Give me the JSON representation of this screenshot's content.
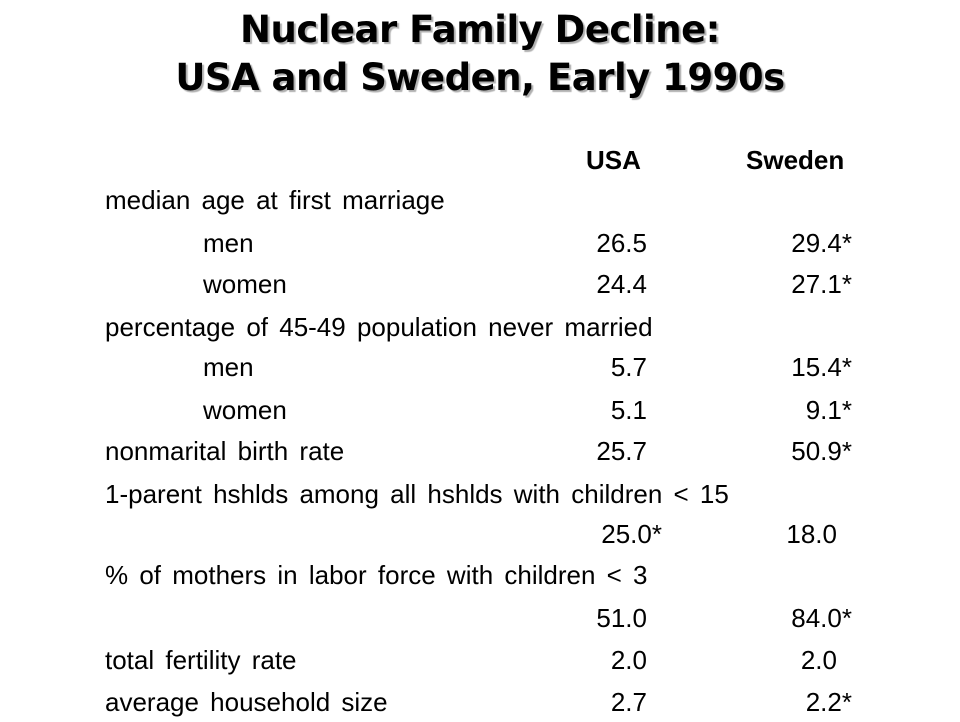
{
  "title": {
    "line1": "Nuclear Family Decline:",
    "line2": "USA and Sweden, Early 1990s"
  },
  "columns": {
    "usa": "USA",
    "sweden": "Sweden"
  },
  "rows": [
    {
      "label": "median age at first marriage",
      "usa": "",
      "sweden": ""
    },
    {
      "label": "men",
      "usa": "26.5",
      "sweden": "29.4*"
    },
    {
      "label": "women",
      "usa": "24.4",
      "sweden": "27.1*"
    },
    {
      "label": "percentage of 45-49 population never married",
      "usa": "",
      "sweden": ""
    },
    {
      "label": "men",
      "usa": "5.7",
      "sweden": "15.4*"
    },
    {
      "label": "women",
      "usa": "5.1",
      "sweden": "9.1*"
    },
    {
      "label": "nonmarital birth rate",
      "usa": "25.7",
      "sweden": "50.9*"
    },
    {
      "label": "1-parent hshlds among all hshlds with children < 15",
      "usa": "",
      "sweden": ""
    },
    {
      "label": "",
      "usa": "25.0*",
      "sweden": "18.0"
    },
    {
      "label": "% of mothers in labor force with children < 3",
      "usa": "",
      "sweden": ""
    },
    {
      "label": "",
      "usa": "51.0",
      "sweden": "84.0*"
    },
    {
      "label": "total fertility rate",
      "usa": "2.0",
      "sweden": "2.0"
    },
    {
      "label": "average household size",
      "usa": "2.7",
      "sweden": "2.2*"
    }
  ]
}
